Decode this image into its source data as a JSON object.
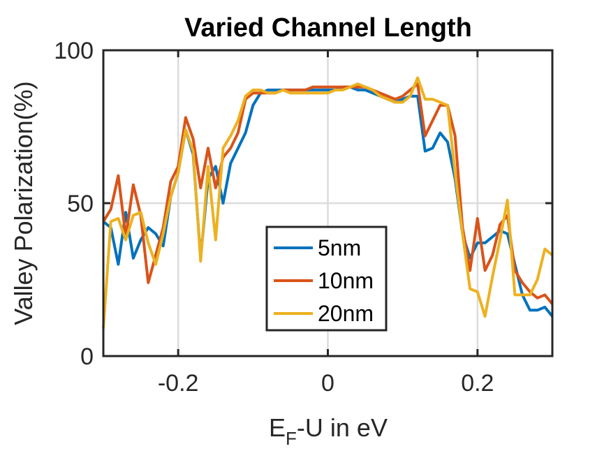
{
  "chart_data": {
    "type": "line",
    "title": "Varied Channel Length",
    "xlabel": {
      "main": "E",
      "sub": "F",
      "rest": "-U in eV"
    },
    "ylabel": "Valley Polarization(%)",
    "xlim": [
      -0.3,
      0.3
    ],
    "ylim": [
      0,
      100
    ],
    "xticks": [
      -0.2,
      0,
      0.2
    ],
    "xtick_labels": [
      "-0.2",
      "0",
      "0.2"
    ],
    "yticks": [
      0,
      50,
      100
    ],
    "ytick_labels": [
      "0",
      "50",
      "100"
    ],
    "grid": true,
    "legend_position": "bottom-center",
    "x": [
      -0.3,
      -0.29,
      -0.28,
      -0.27,
      -0.26,
      -0.25,
      -0.24,
      -0.23,
      -0.22,
      -0.21,
      -0.2,
      -0.19,
      -0.18,
      -0.17,
      -0.16,
      -0.15,
      -0.14,
      -0.13,
      -0.12,
      -0.11,
      -0.1,
      -0.09,
      -0.08,
      -0.07,
      -0.06,
      -0.05,
      -0.04,
      -0.03,
      -0.02,
      -0.01,
      0,
      0.01,
      0.02,
      0.03,
      0.04,
      0.05,
      0.06,
      0.07,
      0.08,
      0.09,
      0.1,
      0.11,
      0.12,
      0.13,
      0.14,
      0.15,
      0.16,
      0.17,
      0.18,
      0.19,
      0.2,
      0.21,
      0.22,
      0.23,
      0.24,
      0.25,
      0.26,
      0.27,
      0.28,
      0.29,
      0.3
    ],
    "series": [
      {
        "name": "5nm",
        "color": "#0072BD",
        "values": [
          44,
          42,
          30,
          47,
          32,
          38,
          42,
          40,
          36,
          52,
          60,
          74,
          66,
          32,
          58,
          62,
          50,
          63,
          68,
          73,
          82,
          86,
          87,
          87,
          87,
          87,
          87,
          87,
          87,
          87,
          87,
          87,
          88,
          88,
          87,
          87,
          86,
          85,
          84,
          83,
          84,
          85,
          85,
          67,
          68,
          73,
          70,
          58,
          40,
          32,
          37,
          37,
          39,
          41,
          40,
          30,
          20,
          15,
          15,
          16,
          13
        ]
      },
      {
        "name": "10nm",
        "color": "#D95319",
        "values": [
          44,
          48,
          59,
          39,
          56,
          46,
          24,
          33,
          42,
          57,
          62,
          78,
          71,
          55,
          68,
          55,
          65,
          68,
          73,
          84,
          86,
          86,
          86,
          86,
          87,
          87,
          87,
          87,
          88,
          88,
          88,
          88,
          88,
          88,
          88,
          88,
          87,
          86,
          85,
          84,
          85,
          87,
          89,
          72,
          77,
          82,
          82,
          72,
          42,
          28,
          45,
          28,
          33,
          43,
          46,
          28,
          24,
          21,
          19,
          20,
          17
        ]
      },
      {
        "name": "20nm",
        "color": "#EDB120",
        "values": [
          9,
          44,
          45,
          38,
          46,
          47,
          37,
          30,
          40,
          52,
          60,
          74,
          67,
          31,
          62,
          38,
          68,
          72,
          77,
          85,
          87,
          87,
          86,
          86,
          87,
          86,
          86,
          86,
          86,
          86,
          86,
          87,
          87,
          88,
          89,
          88,
          87,
          85,
          84,
          83,
          83,
          85,
          91,
          84,
          84,
          83,
          82,
          60,
          40,
          22,
          21,
          13,
          26,
          38,
          51,
          20,
          20,
          20,
          25,
          35,
          33
        ]
      }
    ]
  }
}
